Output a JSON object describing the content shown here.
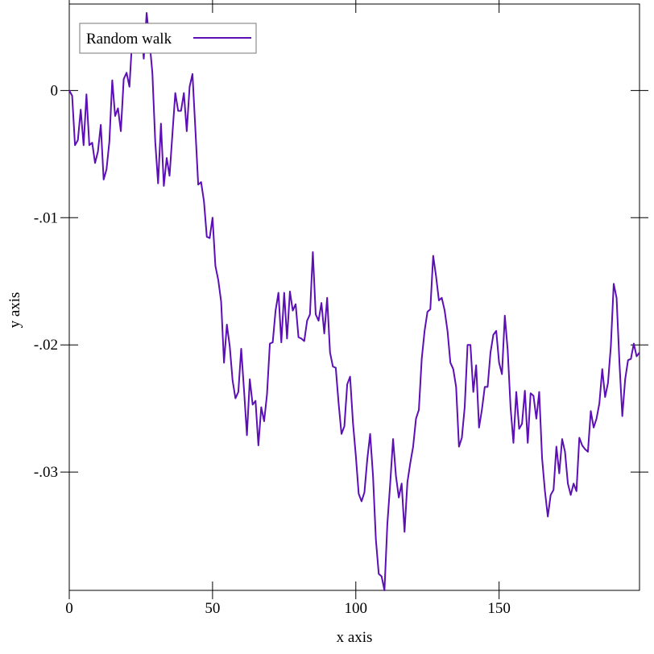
{
  "chart_data": {
    "type": "line",
    "x_label": "x axis",
    "y_label": "y axis",
    "x": [
      0,
      1,
      2,
      3,
      4,
      5,
      6,
      7,
      8,
      9,
      10,
      11,
      12,
      13,
      14,
      15,
      16,
      17,
      18,
      19,
      20,
      21,
      22,
      23,
      24,
      25,
      26,
      27,
      28,
      29,
      30,
      31,
      32,
      33,
      34,
      35,
      36,
      37,
      38,
      39,
      40,
      41,
      42,
      43,
      44,
      45,
      46,
      47,
      48,
      49,
      50,
      51,
      52,
      53,
      54,
      55,
      56,
      57,
      58,
      59,
      60,
      61,
      62,
      63,
      64,
      65,
      66,
      67,
      68,
      69,
      70,
      71,
      72,
      73,
      74,
      75,
      76,
      77,
      78,
      79,
      80,
      81,
      82,
      83,
      84,
      85,
      86,
      87,
      88,
      89,
      90,
      91,
      92,
      93,
      94,
      95,
      96,
      97,
      98,
      99,
      100,
      101,
      102,
      103,
      104,
      105,
      106,
      107,
      108,
      109,
      110,
      111,
      112,
      113,
      114,
      115,
      116,
      117,
      118,
      119,
      120,
      121,
      122,
      123,
      124,
      125,
      126,
      127,
      128,
      129,
      130,
      131,
      132,
      133,
      134,
      135,
      136,
      137,
      138,
      139,
      140,
      141,
      142,
      143,
      144,
      145,
      146,
      147,
      148,
      149,
      150,
      151,
      152,
      153,
      154,
      155,
      156,
      157,
      158,
      159,
      160,
      161,
      162,
      163,
      164,
      165,
      166,
      167,
      168,
      169,
      170,
      171,
      172,
      173,
      174,
      175,
      176,
      177,
      178,
      179,
      180,
      181,
      182,
      183,
      184,
      185,
      186,
      187,
      188,
      189,
      190,
      191,
      192,
      193,
      194,
      195,
      196,
      197,
      198,
      199
    ],
    "series": [
      {
        "name": "Random walk",
        "color": "#5c0fb5",
        "values": [
          0,
          -0.0004,
          -0.0043,
          -0.0039,
          -0.0015,
          -0.0043,
          -0.0003,
          -0.0043,
          -0.0041,
          -0.0057,
          -0.0048,
          -0.0027,
          -0.007,
          -0.0062,
          -0.004,
          0.0008,
          -0.002,
          -0.0014,
          -0.0032,
          0.0009,
          0.0014,
          0.0003,
          0.0042,
          0.0049,
          0.0038,
          0.005,
          0.0025,
          0.0061,
          0.0039,
          0.0014,
          -0.004,
          -0.0073,
          -0.0026,
          -0.0075,
          -0.0053,
          -0.0067,
          -0.0034,
          -0.0002,
          -0.0016,
          -0.0016,
          -0.0002,
          -0.0032,
          0.0003,
          0.0013,
          -0.003,
          -0.0074,
          -0.0072,
          -0.0087,
          -0.0115,
          -0.0116,
          -0.01,
          -0.0138,
          -0.0149,
          -0.0166,
          -0.0214,
          -0.0184,
          -0.0201,
          -0.0228,
          -0.0242,
          -0.0237,
          -0.0203,
          -0.0236,
          -0.0271,
          -0.0227,
          -0.0247,
          -0.0244,
          -0.0279,
          -0.0249,
          -0.026,
          -0.0239,
          -0.0199,
          -0.0198,
          -0.0173,
          -0.0159,
          -0.0198,
          -0.0159,
          -0.0195,
          -0.0158,
          -0.0173,
          -0.0168,
          -0.0194,
          -0.0195,
          -0.0197,
          -0.0181,
          -0.0176,
          -0.0127,
          -0.0176,
          -0.0181,
          -0.0167,
          -0.0191,
          -0.0163,
          -0.0206,
          -0.0217,
          -0.0218,
          -0.0246,
          -0.027,
          -0.0264,
          -0.0231,
          -0.0225,
          -0.0261,
          -0.0287,
          -0.0317,
          -0.0323,
          -0.0316,
          -0.029,
          -0.027,
          -0.0303,
          -0.0353,
          -0.038,
          -0.0382,
          -0.0393,
          -0.0341,
          -0.0309,
          -0.0274,
          -0.0303,
          -0.032,
          -0.0309,
          -0.0347,
          -0.0308,
          -0.0293,
          -0.028,
          -0.0258,
          -0.0251,
          -0.0211,
          -0.0189,
          -0.0174,
          -0.0172,
          -0.013,
          -0.0146,
          -0.0165,
          -0.0163,
          -0.0173,
          -0.0189,
          -0.0214,
          -0.0219,
          -0.0233,
          -0.028,
          -0.0273,
          -0.0249,
          -0.02,
          -0.02,
          -0.0237,
          -0.0216,
          -0.0265,
          -0.0251,
          -0.0233,
          -0.0233,
          -0.0206,
          -0.0192,
          -0.0189,
          -0.0214,
          -0.0223,
          -0.0177,
          -0.0204,
          -0.0249,
          -0.0277,
          -0.0237,
          -0.0266,
          -0.0262,
          -0.0236,
          -0.0277,
          -0.0238,
          -0.024,
          -0.0258,
          -0.0237,
          -0.0289,
          -0.0315,
          -0.0335,
          -0.0318,
          -0.0314,
          -0.028,
          -0.0301,
          -0.0274,
          -0.0284,
          -0.0309,
          -0.0318,
          -0.0309,
          -0.0315,
          -0.0273,
          -0.0279,
          -0.0282,
          -0.0284,
          -0.0252,
          -0.0265,
          -0.0258,
          -0.0246,
          -0.0219,
          -0.0241,
          -0.023,
          -0.0201,
          -0.0152,
          -0.0163,
          -0.0214,
          -0.0256,
          -0.0227,
          -0.0212,
          -0.0211,
          -0.0199,
          -0.0209,
          -0.0206
        ]
      }
    ],
    "xlim": [
      0,
      199
    ],
    "ylim": [
      -0.0393,
      0.0068
    ],
    "xticks": [
      0,
      50,
      100,
      150
    ],
    "yticks": [
      0,
      {
        "value": -0.01,
        "label": "-.01"
      },
      {
        "value": -0.02,
        "label": "-.02"
      },
      {
        "value": -0.03,
        "label": "-.03"
      }
    ],
    "legend": "top-left"
  }
}
